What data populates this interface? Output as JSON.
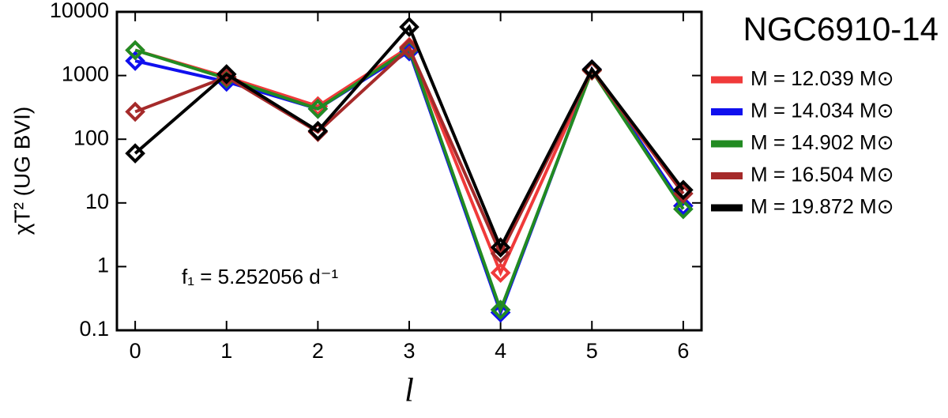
{
  "chart_data": {
    "type": "line",
    "title": "NGC6910-14",
    "annotation": "f₁ = 5.252056 d⁻¹",
    "x_label": "l",
    "y_label": "χT² (UG BVI)",
    "log_y": true,
    "x": [
      0,
      1,
      2,
      3,
      4,
      5,
      6
    ],
    "xlim": [
      -0.2,
      6.2
    ],
    "xticks": [
      0,
      1,
      2,
      3,
      4,
      5,
      6
    ],
    "ylim": [
      0.1,
      10000
    ],
    "yticks": [
      0.1,
      1,
      10,
      100,
      1000,
      10000
    ],
    "legend": "right",
    "series": [
      {
        "name": "M = 12.039 M⊙",
        "color": "#f03a3a",
        "values": [
          2500,
          950,
          330,
          2800,
          0.8,
          1200,
          9
        ]
      },
      {
        "name": "M = 14.034 M⊙",
        "color": "#1010ee",
        "values": [
          1700,
          800,
          300,
          2400,
          0.19,
          1250,
          9
        ]
      },
      {
        "name": "M = 14.902 M⊙",
        "color": "#228b22",
        "values": [
          2500,
          900,
          300,
          2600,
          0.21,
          1200,
          8
        ]
      },
      {
        "name": "M = 16.504 M⊙",
        "color": "#a52a2a",
        "values": [
          270,
          950,
          130,
          2700,
          1.6,
          1200,
          14
        ]
      },
      {
        "name": "M = 19.872 M⊙",
        "color": "#000000",
        "values": [
          60,
          1050,
          135,
          5800,
          2,
          1250,
          16
        ]
      }
    ]
  }
}
